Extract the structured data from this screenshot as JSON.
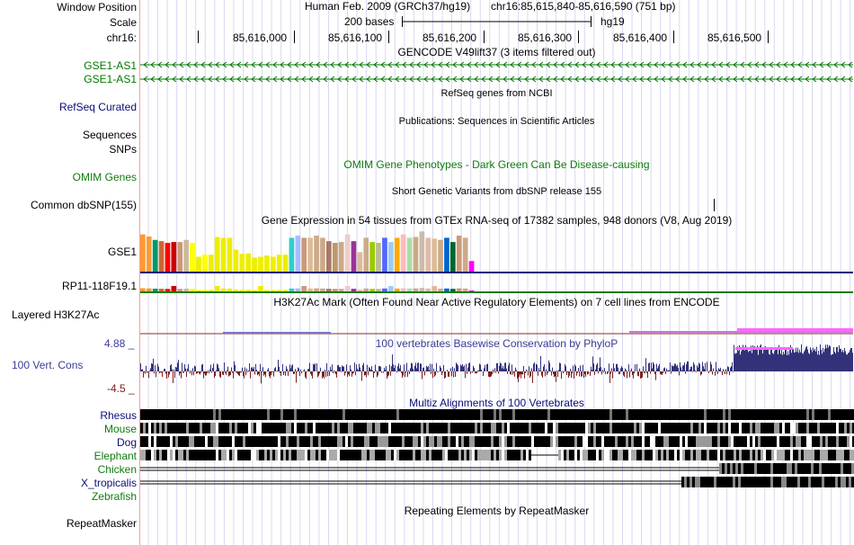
{
  "header": {
    "window_position_label": "Window Position",
    "scale_label": "Scale",
    "chrom_label": "chr16:",
    "assembly": "Human Feb. 2009 (GRCh37/hg19)",
    "position": "chr16:85,615,840-85,616,590 (751 bp)",
    "scale_text": "200 bases",
    "db": "hg19",
    "ruler_ticks": [
      "85,616,000",
      "85,616,100",
      "85,616,200",
      "85,616,300",
      "85,616,400",
      "85,616,500"
    ]
  },
  "tracks": {
    "gencode": {
      "title": "GENCODE V49lift37 (3 items filtered out)",
      "items": [
        "GSE1-AS1",
        "GSE1-AS1"
      ],
      "color": "#007800"
    },
    "refseq": {
      "title": "RefSeq genes from NCBI",
      "label": "RefSeq Curated",
      "color": "#0c0c78"
    },
    "publications": {
      "title": "Publications: Sequences in Scientific Articles",
      "label1": "Sequences",
      "label2": "SNPs"
    },
    "omim": {
      "title": "OMIM Gene Phenotypes - Dark Green Can Be Disease-causing",
      "label": "OMIM Genes",
      "color": "#107b10"
    },
    "dbsnp": {
      "title": "Short Genetic Variants from dbSNP release 155",
      "label": "Common dbSNP(155)"
    },
    "gtex": {
      "title": "Gene Expression in 54 tissues from GTEx RNA-seq of 17382 samples, 948 donors (V8, Aug 2019)",
      "gene1": "GSE1",
      "gene2": "RP11-118F19.1",
      "bar_levels": [
        0.88,
        0.83,
        0.75,
        0.72,
        0.68,
        0.7,
        0.7,
        0.75,
        0.68,
        0.35,
        0.4,
        0.4,
        0.82,
        0.8,
        0.8,
        0.52,
        0.42,
        0.43,
        0.33,
        0.35,
        0.38,
        0.35,
        0.4,
        0.4,
        0.8,
        0.85,
        0.8,
        0.8,
        0.85,
        0.8,
        0.72,
        0.68,
        0.7,
        0.88,
        0.72,
        0.46,
        0.8,
        0.7,
        0.68,
        0.8,
        0.7,
        0.8,
        0.88,
        0.8,
        0.82,
        0.95,
        0.8,
        0.78,
        0.75,
        0.8,
        0.7,
        0.85,
        0.8,
        0.25
      ],
      "colors": [
        "#ff9933",
        "#ff9933",
        "#009966",
        "#cc6633",
        "#ff0000",
        "#cc0000",
        "#cc9977",
        "#ccbb99",
        "#ffff00",
        "#eeee00",
        "#ffff00",
        "#eeee00",
        "#eeee00",
        "#eeee00",
        "#eeee00",
        "#eeee00",
        "#eeee00",
        "#eeee00",
        "#eeee00",
        "#eeee00",
        "#eeee00",
        "#eeee00",
        "#eeee00",
        "#eeee00",
        "#33cccc",
        "#aabbff",
        "#cc9977",
        "#ddbb99",
        "#ccaa88",
        "#ccaa88",
        "#aa7766",
        "#bb9966",
        "#ccaa88",
        "#eecccc",
        "#993399",
        "#ddbb99",
        "#ccaa88",
        "#99cc00",
        "#bbbb99",
        "#5566ff",
        "#99ccff",
        "#ffaa00",
        "#ffbbbb",
        "#aaddaa",
        "#ccaa88",
        "#ccbbaa",
        "#ddbbaa",
        "#ddbb99",
        "#ccaa88",
        "#0066cc",
        "#006633",
        "#cc9977",
        "#ccaa88",
        "#ff00ff"
      ]
    },
    "h3k27ac": {
      "title": "H3K27Ac Mark (Often Found Near Active Regulatory Elements) on 7 cell lines from ENCODE",
      "label": "Layered H3K27Ac"
    },
    "phylop": {
      "title": "100 vertebrates Basewise Conservation by PhyloP",
      "label": "100 Vert. Cons",
      "max": "4.88 _",
      "min": "-4.5 _",
      "pos_color": "#32327a",
      "neg_color": "#7a1e1e",
      "label_color": "#3c3c96"
    },
    "multiz": {
      "title": "Multiz Alignments of 100 Vertebrates",
      "species": [
        {
          "name": "Rhesus",
          "color": "#0c0c78"
        },
        {
          "name": "Mouse",
          "color": "#107b10"
        },
        {
          "name": "Dog",
          "color": "#0c0c78"
        },
        {
          "name": "Elephant",
          "color": "#107b10"
        },
        {
          "name": "Chicken",
          "color": "#107b10"
        },
        {
          "name": "X_tropicalis",
          "color": "#0c0c78"
        },
        {
          "name": "Zebrafish",
          "color": "#107b10"
        }
      ]
    },
    "repeatmasker": {
      "title": "Repeating Elements by RepeatMasker",
      "label": "RepeatMasker"
    }
  }
}
